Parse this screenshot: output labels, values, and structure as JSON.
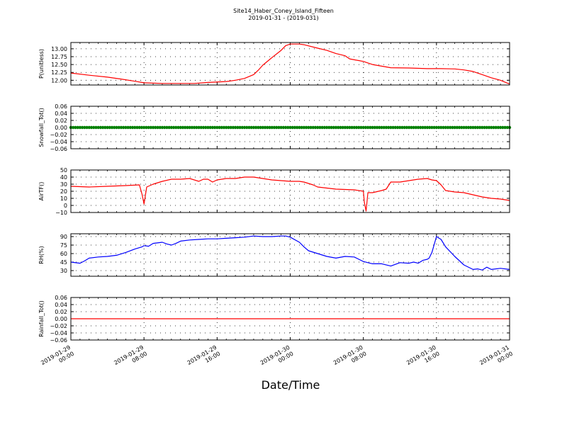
{
  "title_line1": "Site14_Haber_Coney_Island_Fifteen",
  "title_line2": "2019-01-31 - (2019-031)",
  "xlabel": "Date/Time",
  "x_ticks": [
    {
      "l1": "2019-01-29",
      "l2": "00:00"
    },
    {
      "l1": "2019-01-29",
      "l2": "08:00"
    },
    {
      "l1": "2019-01-29",
      "l2": "16:00"
    },
    {
      "l1": "2019-01-30",
      "l2": "00:00"
    },
    {
      "l1": "2019-01-30",
      "l2": "08:00"
    },
    {
      "l1": "2019-01-30",
      "l2": "16:00"
    },
    {
      "l1": "2019-01-31",
      "l2": "00:00"
    }
  ],
  "chart_data": [
    {
      "type": "line",
      "ylabel": "P(unitless)",
      "ylim": [
        11.85,
        13.2
      ],
      "yticks": [
        12.0,
        12.25,
        12.5,
        12.75,
        13.0
      ],
      "ytick_labels": [
        "12.00",
        "12.25",
        "12.50",
        "12.75",
        "13.00"
      ],
      "grid": true,
      "series": [
        {
          "color": "#ff0000",
          "x_hours": [
            0,
            2,
            4,
            5.5,
            7,
            8,
            10,
            12,
            13.5,
            15,
            17,
            18,
            19,
            20,
            20.5,
            21,
            22,
            23,
            23.5,
            24,
            25,
            25.5,
            27,
            28,
            29,
            30,
            30.5,
            31,
            32,
            32.5,
            33,
            35,
            37,
            39,
            40.5,
            42,
            43,
            44,
            45,
            46,
            47,
            48
          ],
          "values": [
            12.23,
            12.16,
            12.1,
            12.04,
            11.97,
            11.92,
            11.9,
            11.9,
            11.9,
            11.93,
            11.96,
            12.0,
            12.06,
            12.18,
            12.32,
            12.48,
            12.72,
            12.95,
            13.1,
            13.15,
            13.15,
            13.13,
            13.02,
            12.95,
            12.85,
            12.78,
            12.68,
            12.65,
            12.6,
            12.55,
            12.5,
            12.4,
            12.39,
            12.37,
            12.37,
            12.36,
            12.33,
            12.28,
            12.18,
            12.08,
            12.0,
            11.88
          ]
        }
      ]
    },
    {
      "type": "scatter",
      "ylabel": "Snowfall_Tot()",
      "ylim": [
        -0.06,
        0.06
      ],
      "yticks": [
        -0.06,
        -0.04,
        -0.02,
        0.0,
        0.02,
        0.04,
        0.06
      ],
      "ytick_labels": [
        "−0.06",
        "−0.04",
        "−0.02",
        "0.00",
        "0.02",
        "0.04",
        "0.06"
      ],
      "grid": true,
      "series": [
        {
          "color": "#008000",
          "x_hours": [
            0,
            48
          ],
          "values": [
            0.0,
            0.0
          ]
        }
      ]
    },
    {
      "type": "line",
      "ylabel": "AirTF()",
      "ylim": [
        -10,
        50
      ],
      "yticks": [
        -10,
        0,
        10,
        20,
        30,
        40,
        50
      ],
      "ytick_labels": [
        "−10",
        "0",
        "10",
        "20",
        "30",
        "40",
        "50"
      ],
      "grid": true,
      "series": [
        {
          "color": "#ff0000",
          "x_hours": [
            0,
            2,
            4,
            6,
            7.5,
            7.8,
            8.0,
            8.3,
            9,
            10,
            11,
            12,
            13,
            14,
            14.5,
            15,
            15.5,
            16,
            17,
            18,
            19,
            20,
            21,
            22,
            23,
            24,
            25,
            25.5,
            26,
            26.5,
            27,
            29,
            31,
            32,
            32.1,
            32.3,
            32.5,
            33,
            34,
            34.5,
            35,
            36,
            37,
            38,
            39,
            39.5,
            40,
            40.5,
            41,
            42,
            43,
            44,
            45,
            46,
            47,
            48
          ],
          "values": [
            27,
            26,
            27,
            28,
            29,
            15,
            2,
            26,
            30,
            34,
            37,
            37,
            38,
            34,
            37,
            37,
            33,
            36,
            38,
            38,
            40,
            40,
            38,
            36,
            35,
            34,
            34,
            33,
            31,
            29,
            26,
            23,
            22,
            20,
            5,
            -8,
            18,
            18,
            21,
            23,
            33,
            33,
            35,
            37,
            38,
            36,
            35,
            29,
            21,
            19,
            18,
            15,
            12,
            10,
            9,
            7
          ]
        }
      ]
    },
    {
      "type": "line",
      "ylabel": "RH(%)",
      "ylim": [
        20,
        95
      ],
      "yticks": [
        30,
        45,
        60,
        75,
        90
      ],
      "ytick_labels": [
        "30",
        "45",
        "60",
        "75",
        "90"
      ],
      "grid": true,
      "series": [
        {
          "color": "#0000ff",
          "x_hours": [
            0,
            1,
            1.5,
            2,
            3,
            4,
            5,
            6,
            7,
            7.8,
            8,
            8.5,
            9,
            10,
            10.5,
            11,
            11.5,
            12,
            13,
            14,
            15,
            16,
            17,
            18,
            19,
            20,
            21,
            22,
            23,
            23.5,
            24,
            25,
            25.5,
            26,
            27,
            28,
            29,
            30,
            31,
            31.5,
            32,
            33,
            34,
            35,
            36,
            37,
            37.5,
            38,
            38.5,
            39,
            39.2,
            39.5,
            40,
            40.5,
            41,
            42,
            43,
            44,
            44.5,
            45,
            45.5,
            46,
            47,
            48
          ],
          "values": [
            45,
            43,
            47,
            52,
            54,
            55,
            57,
            62,
            68,
            72,
            74,
            73,
            78,
            80,
            77,
            75,
            78,
            82,
            84,
            85,
            86,
            86,
            87,
            88,
            89,
            91,
            90,
            90,
            91,
            91,
            89,
            80,
            72,
            65,
            60,
            55,
            52,
            55,
            54,
            50,
            46,
            42,
            42,
            38,
            44,
            43,
            45,
            43,
            48,
            50,
            52,
            62,
            90,
            85,
            72,
            55,
            40,
            32,
            33,
            31,
            36,
            32,
            34,
            32
          ]
        }
      ]
    },
    {
      "type": "line",
      "ylabel": "Rainfall_Tot()",
      "ylim": [
        -0.06,
        0.06
      ],
      "yticks": [
        -0.06,
        -0.04,
        -0.02,
        0.0,
        0.02,
        0.04,
        0.06
      ],
      "ytick_labels": [
        "−0.06",
        "−0.04",
        "−0.02",
        "0.00",
        "0.02",
        "0.04",
        "0.06"
      ],
      "grid": true,
      "series": [
        {
          "color": "#ff0000",
          "x_hours": [
            0,
            48
          ],
          "values": [
            0.0,
            0.0
          ]
        }
      ]
    }
  ]
}
